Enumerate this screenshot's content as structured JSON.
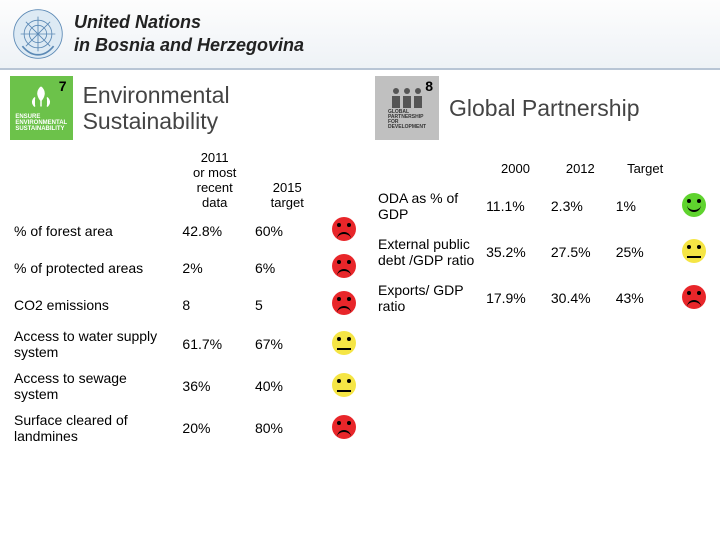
{
  "header": {
    "line1": "United Nations",
    "line2": "in Bosnia and Herzegovina"
  },
  "left": {
    "badge_num": "7",
    "title": "Environmental Sustainability",
    "col1_a": "2011",
    "col1_b": "or most recent data",
    "col2_a": "2015",
    "col2_b": "target",
    "rows": [
      {
        "label": "% of forest area",
        "v1": "42.8%",
        "v2": "60%",
        "face": "red"
      },
      {
        "label": "% of protected areas",
        "v1": "2%",
        "v2": "6%",
        "face": "red"
      },
      {
        "label": "CO2 emissions",
        "v1": "8",
        "v2": "5",
        "face": "red"
      },
      {
        "label": "Access to water supply system",
        "v1": "61.7%",
        "v2": "67%",
        "face": "yellow"
      },
      {
        "label": "Access to sewage system",
        "v1": "36%",
        "v2": "40%",
        "face": "yellow"
      },
      {
        "label": "Surface cleared of landmines",
        "v1": "20%",
        "v2": "80%",
        "face": "red"
      }
    ]
  },
  "right": {
    "badge_num": "8",
    "title": "Global Partnership",
    "col1": "2000",
    "col2": "2012",
    "col3": "Target",
    "rows": [
      {
        "label": "ODA as % of GDP",
        "v1": "11.1%",
        "v2": "2.3%",
        "v3": "1%",
        "face": "green"
      },
      {
        "label": "External public debt /GDP ratio",
        "v1": "35.2%",
        "v2": "27.5%",
        "v3": "25%",
        "face": "yellow"
      },
      {
        "label": "Exports/ GDP ratio",
        "v1": "17.9%",
        "v2": "30.4%",
        "v3": "43%",
        "face": "red"
      }
    ]
  },
  "colors": {
    "red": "#e8262a",
    "yellow": "#f5e545",
    "green": "#5fd32e",
    "mdg7": "#6cc24a",
    "mdg8": "#c0c0c0"
  }
}
